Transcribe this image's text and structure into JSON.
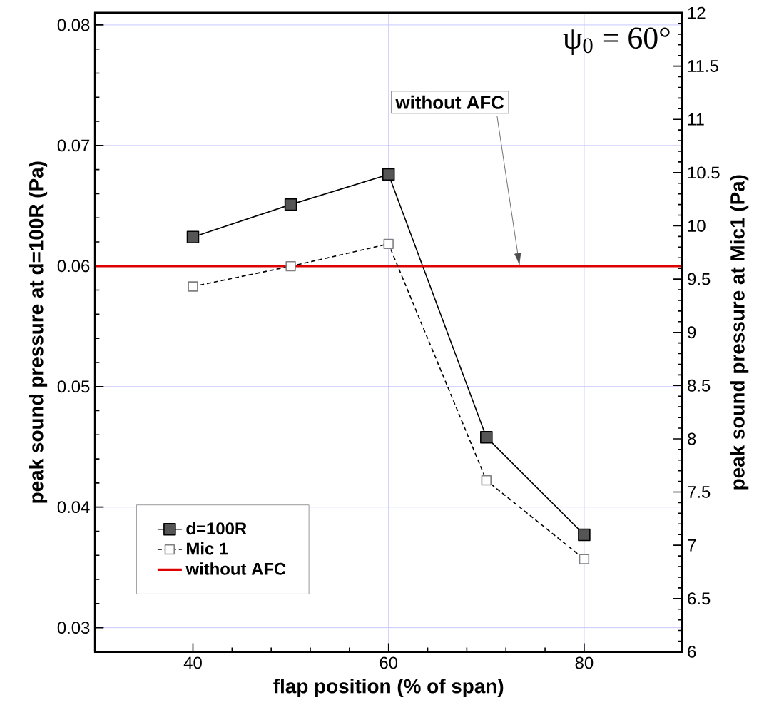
{
  "chart_data": {
    "type": "line",
    "xlabel": "flap position (% of span)",
    "ylabel": "peak sound pressure at d=100R (Pa)",
    "y2label": "peak sound pressure at Mic1 (Pa)",
    "x": [
      40,
      50,
      60,
      70,
      80
    ],
    "series": [
      {
        "name": "d=100R",
        "color": "#000000",
        "values": [
          0.0624,
          0.0651,
          0.0676,
          0.0458,
          0.0377
        ],
        "marker": "square",
        "line_style": "solid"
      },
      {
        "name": "Mic 1",
        "color": "#000000",
        "values": [
          9.43,
          9.62,
          9.83,
          7.61,
          6.87
        ],
        "marker": "square",
        "line_style": "dashed",
        "axis": "y2"
      },
      {
        "name": "without AFC",
        "color": "#dd0000",
        "x": [
          30,
          90
        ],
        "values": [
          0.06,
          0.06
        ],
        "marker": "none",
        "line_style": "solid"
      }
    ],
    "xlim": [
      30,
      90
    ],
    "xticks": [
      40,
      60,
      80
    ],
    "ylim": [
      0.028,
      0.081
    ],
    "yticks": [
      0.03,
      0.04,
      0.05,
      0.06,
      0.07,
      0.08
    ],
    "y2lim": [
      6,
      12
    ],
    "y2ticks": [
      6,
      6.5,
      7,
      7.5,
      8,
      8.5,
      9,
      9.5,
      10,
      10.5,
      11,
      11.5,
      12
    ],
    "grid": true,
    "legend": "bottom left",
    "annotations": [
      {
        "text": "without AFC",
        "x": 73.4,
        "y": 0.06
      },
      "ψ$_{0}$ = 60°"
    ]
  }
}
